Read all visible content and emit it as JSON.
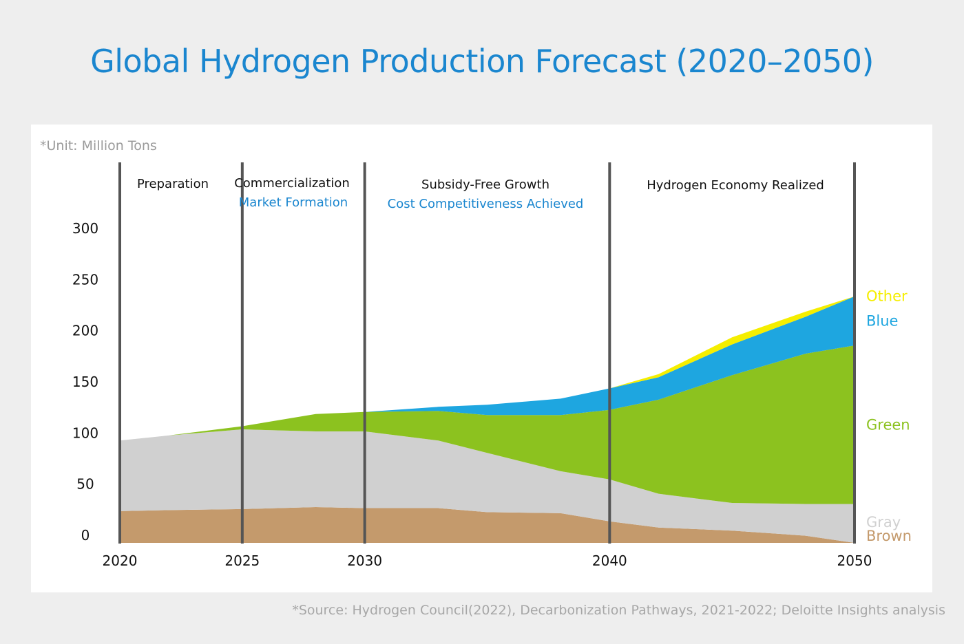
{
  "title": "Global Hydrogen Production Forecast (2020–2050)",
  "unit_note": "*Unit: Million Tons",
  "source_note": "*Source: Hydrogen Council(2022), Decarbonization Pathways, 2021-2022; Deloitte Insights analysis",
  "phases": [
    {
      "main": "Preparation",
      "sub": ""
    },
    {
      "main": "Commercialization",
      "sub": "Market Formation"
    },
    {
      "main": "Subsidy-Free Growth",
      "sub": "Cost Competitiveness Achieved"
    },
    {
      "main": "Hydrogen Economy Realized",
      "sub": ""
    }
  ],
  "chart_data": {
    "type": "area",
    "stacked": true,
    "x_ticks": [
      2020,
      2025,
      2030,
      2040,
      2050
    ],
    "y_ticks": [
      0,
      50,
      100,
      150,
      200,
      250,
      300
    ],
    "ylim": [
      0,
      300
    ],
    "xlim": [
      2020,
      2050
    ],
    "phase_boundaries": [
      2020,
      2025,
      2030,
      2040,
      2050
    ],
    "x": [
      2020,
      2022,
      2025,
      2028,
      2030,
      2033,
      2035,
      2038,
      2040,
      2042,
      2045,
      2048,
      2050
    ],
    "series": [
      {
        "name": "Brown",
        "color": "#c49a6c",
        "values": [
          31,
          32,
          33,
          35,
          34,
          34,
          30,
          29,
          21,
          15,
          12,
          7,
          0
        ]
      },
      {
        "name": "Gray",
        "color": "#d0d0d0",
        "values": [
          69,
          73,
          78,
          74,
          75,
          66,
          58,
          41,
          41,
          33,
          27,
          31,
          38
        ]
      },
      {
        "name": "Green",
        "color": "#8cc21f",
        "values": [
          0,
          0,
          3,
          17,
          19,
          29,
          37,
          55,
          68,
          92,
          125,
          147,
          155
        ]
      },
      {
        "name": "Blue",
        "color": "#1ea6e0",
        "values": [
          0,
          0,
          0,
          0,
          0,
          4,
          10,
          16,
          21,
          22,
          30,
          36,
          48
        ]
      },
      {
        "name": "Other",
        "color": "#f5ee00",
        "values": [
          0,
          0,
          0,
          0,
          0,
          0,
          0,
          0,
          0,
          3,
          7,
          5,
          0
        ]
      }
    ],
    "legend_position": "right"
  }
}
